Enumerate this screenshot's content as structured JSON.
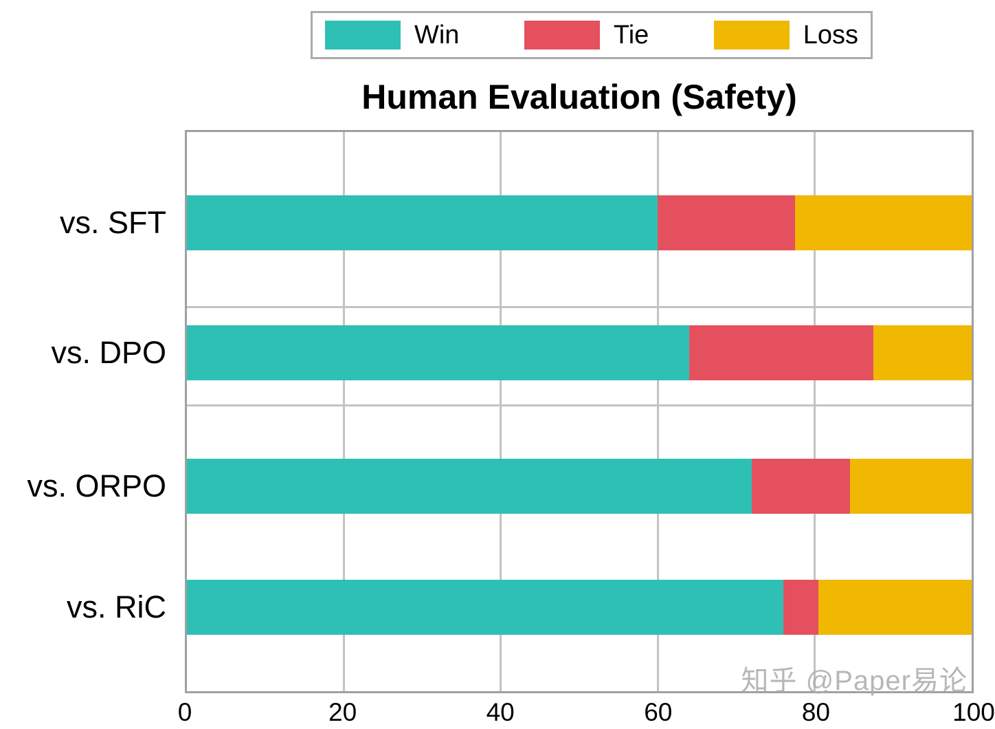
{
  "title": "Human Evaluation (Safety)",
  "watermark": "知乎 @Paper易论",
  "legend": {
    "items": [
      {
        "label": "Win",
        "color": "#2ec0b4"
      },
      {
        "label": "Tie",
        "color": "#e5505f"
      },
      {
        "label": "Loss",
        "color": "#f0b800"
      }
    ]
  },
  "chart_data": {
    "type": "bar",
    "orientation": "horizontal",
    "stacked": true,
    "title": "Human Evaluation (Safety)",
    "categories": [
      "vs. SFT",
      "vs. DPO",
      "vs. ORPO",
      "vs. RiC"
    ],
    "series": [
      {
        "name": "Win",
        "color": "#2ec0b4",
        "values": [
          60.0,
          64.0,
          72.0,
          76.0
        ]
      },
      {
        "name": "Tie",
        "color": "#e5505f",
        "values": [
          17.5,
          23.5,
          12.5,
          4.5
        ]
      },
      {
        "name": "Loss",
        "color": "#f0b800",
        "values": [
          22.5,
          12.5,
          15.5,
          19.5
        ]
      }
    ],
    "xlabel": "",
    "ylabel": "",
    "xlim": [
      0,
      100
    ],
    "x_tick_labels": [
      "0",
      "20",
      "40",
      "60",
      "80",
      "100"
    ],
    "grid": true,
    "legend_position": "top-center",
    "colors": {
      "grid": "#c3c3c3",
      "axis_border": "#a0a0a0",
      "watermark": "#ababab"
    }
  }
}
